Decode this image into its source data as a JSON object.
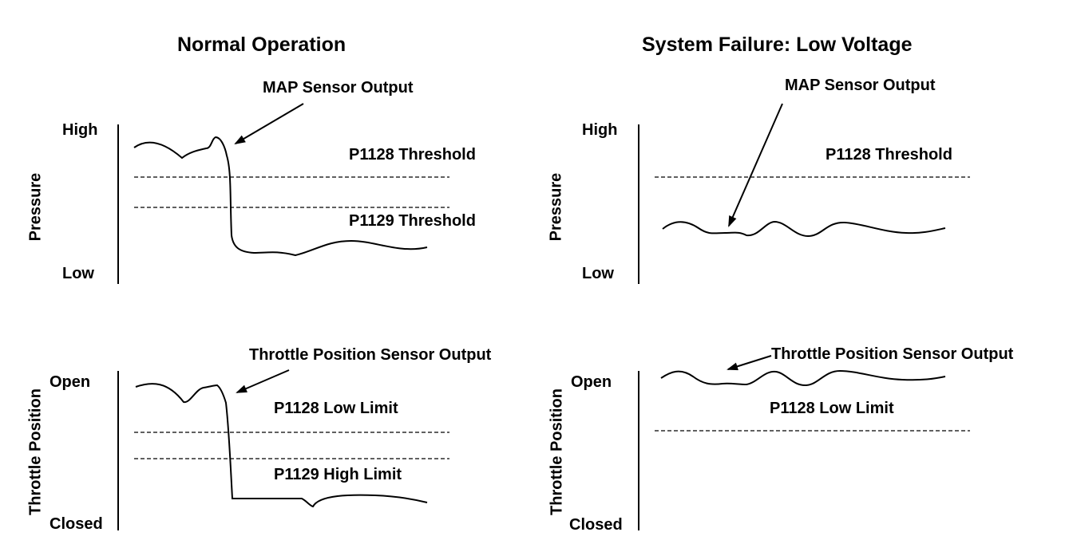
{
  "panels": {
    "normal": {
      "title": "Normal Operation",
      "map": {
        "y_high": "High",
        "y_low": "Low",
        "axis_label": "Pressure",
        "callout": "MAP Sensor Output",
        "threshold_upper": "P1128 Threshold",
        "threshold_lower": "P1129 Threshold"
      },
      "tps": {
        "y_high": "Open",
        "y_low": "Closed",
        "axis_label": "Throttle Position",
        "callout": "Throttle Position Sensor Output",
        "limit_upper": "P1128 Low Limit",
        "limit_lower": "P1129 High Limit"
      }
    },
    "failure": {
      "title": "System Failure: Low Voltage",
      "map": {
        "y_high": "High",
        "y_low": "Low",
        "axis_label": "Pressure",
        "callout": "MAP Sensor Output",
        "threshold_upper": "P1128 Threshold"
      },
      "tps": {
        "y_high": "Open",
        "y_low": "Closed",
        "axis_label": "Throttle Position",
        "callout": "Throttle Position Sensor Output",
        "limit_upper": "P1128 Low Limit"
      }
    }
  },
  "colors": {
    "line": "#000000",
    "background": "#ffffff"
  }
}
